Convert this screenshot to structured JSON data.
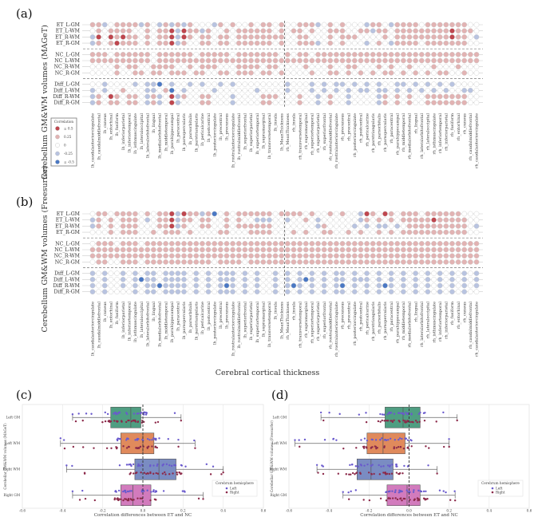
{
  "figure": {
    "panel_labels": [
      "(a)",
      "(b)",
      "(c)",
      "(d)"
    ],
    "heatmap_ylabel_a": "Cerebellum GM&WM volumes (MAGeT)",
    "heatmap_ylabel_b": "Cerebellum GM&WM volumes (Freesurfer)",
    "heatmap_xlabel": "Cerebral cortical thickness",
    "legend": {
      "title": "Correlation",
      "items": [
        "≥ 0.5",
        "0.25",
        "0",
        "-0.25",
        "≤ -0.5"
      ]
    },
    "colors": {
      "neg_strong": "#4a78c4",
      "neg": "#b8c3e0",
      "zero": "#ffffff",
      "pos": "#e2b3b3",
      "pos_strong": "#bf464e"
    }
  },
  "chart_data": [
    {
      "type": "heatmap",
      "panel": "(a)",
      "title": "MAGeT",
      "value_bins": [
        -0.5,
        -0.25,
        0,
        0.25,
        0.5
      ],
      "rows": [
        "ET_L-GM",
        "ET_L-WM",
        "ET_R-WM",
        "ET_R-GM",
        "NC_L-GM",
        "NC_L-WM",
        "NC_R-WM",
        "NC_R-GM",
        "Diff_L-GM",
        "Diff_L-WM",
        "Diff_R-WM",
        "Diff_R-GM"
      ],
      "columns": [
        "lh_caudalanteriorcingulate",
        "lh_caudalmiddlefrontal",
        "lh_cuneus",
        "lh_entorhinal",
        "lh_fusiform",
        "lh_inferiorparietal",
        "lh_inferiortemporal",
        "lh_isthmuscingulate",
        "lh_lateraloccipital",
        "lh_lateralorbitofrontal",
        "lh_lingual",
        "lh_medialorbitofrontal",
        "lh_middletemporal",
        "lh_parahippocampal",
        "lh_paracentral",
        "lh_parsopercularis",
        "lh_parsorbitalis",
        "lh_parstriangularis",
        "lh_pericalcarine",
        "lh_postcentral",
        "lh_posteriorcingulate",
        "lh_precentral",
        "lh_precuneus",
        "lh_rostralanteriorcingulate",
        "lh_rostralmiddlefrontal",
        "lh_superiorfrontal",
        "lh_superiorparietal",
        "lh_superiortemporal",
        "lh_supramarginal",
        "lh_transversetemporal",
        "lh_insula",
        "lh_MeanThickness",
        "rh_MeanThickness",
        "rh_insula",
        "rh_transversetemporal",
        "rh_supramarginal",
        "rh_superiortemporal",
        "rh_superiorparietal",
        "rh_superiorfrontal",
        "rh_rostralmiddlefrontal",
        "rh_rostralanteriorcingulate",
        "rh_precuneus",
        "rh_precentral",
        "rh_posteriorcingulate",
        "rh_postcentral",
        "rh_pericalcarine",
        "rh_parstriangularis",
        "rh_parsorbitalis",
        "rh_parsopercularis",
        "rh_paracentral",
        "rh_parahippocampal",
        "rh_middletemporal",
        "rh_medialorbitofrontal",
        "rh_lingual",
        "rh_lateralorbitofrontal",
        "rh_lateraloccipital",
        "rh_isthmuscingulate",
        "rh_inferiortemporal",
        "rh_inferiorparietal",
        "rh_fusiform",
        "rh_entorhinal",
        "rh_cuneus",
        "rh_caudalmiddlefrontal",
        "rh_caudalanteriorcingulate"
      ],
      "bins": [
        "3312333313213131322213232232332322333123232221332133332333333322",
        "2323333223233414331322323333332323323223332233133233333333343332",
        "1424343323233414323323323333333322332223233322223233333333343321",
        "1323433323233413223323323333332322333123232221232133332333333322",
        "3332333333233333323333323333333232332333333333333333333333333333",
        "3333333333233333333333333333333333333333333333333333333333333333",
        "2222323322333322323332223333233222232223223322232322322232223222",
        "2222322332332333233223323332332322223223323232323323232323322322",
        "2212222121102122121221212222222212221212112121212211212121212222",
        "1212232221123021222212222221222212221212121211211212121212122112",
        "1324323321312413223322212222333222322123221222213232322333333322",
        "1323323321312412223322212222332222322123221222213232322333333322"
      ]
    },
    {
      "type": "heatmap",
      "panel": "(b)",
      "title": "Freesurfer",
      "value_bins": [
        -0.5,
        -0.25,
        0,
        0.25,
        0.5
      ],
      "rows": [
        "ET_L-GM",
        "ET_L-WM",
        "ET_R-WM",
        "ET_R-GM",
        "NC_L-GM",
        "NC_L-WM",
        "NC_R-WM",
        "NC_R-GM",
        "Diff_L-GM",
        "Diff_L-WM",
        "Diff_R-WM",
        "Diff_R-GM"
      ],
      "bins": [
        "2332333323233414331302323333332333323223232214324323332333333222",
        "1323233321233413323322323221112212232122222213232323333343333322",
        "1323233322233413223322323333332222222132222121211212333333333321",
        "2223233322323332322223322233332223232233223232232323333333333322",
        "2333233323333333333333333333333333333333333333333333333333333333",
        "3333333333333333333333333333333333333333333333333333333333333333",
        "3333333333333333333333333333333333333333333333333333333333333333",
        "2332233323333333333323333233333333333333333333333333333333333333",
        "1212212121121111212121112121221212121212112121212121212121212121",
        "1212212101121111212121112121221212101212112111212121212121212121",
        "1212212121101111212121012121221210121212102121210121212121212121",
        "1212222121121111212121112121221212121212112121212121212121212122"
      ]
    },
    {
      "type": "box",
      "panel": "(c)",
      "ylabel": "Cerebellar GM&WM volumes (MAGeT)",
      "xlabel": "Correlation differences between ET and NC",
      "xlim": [
        -0.6,
        0.6
      ],
      "xticks": [
        "-0.6",
        "-0.4",
        "-0.2",
        "0.0",
        "0.2",
        "0.4",
        "0.6"
      ],
      "categories": [
        "Left GM",
        "Left WM",
        "Right WM",
        "Right GM"
      ],
      "box_colors": [
        "#4f9e82",
        "#e08a5c",
        "#7a8cc2",
        "#d27bbd"
      ],
      "stats": [
        {
          "min": -0.35,
          "q1": -0.16,
          "median": -0.06,
          "q3": -0.01,
          "max": 0.19
        },
        {
          "min": -0.41,
          "q1": -0.11,
          "median": 0.0,
          "q3": 0.055,
          "max": 0.26
        },
        {
          "min": -0.38,
          "q1": -0.04,
          "median": 0.08,
          "q3": 0.165,
          "max": 0.4
        },
        {
          "min": -0.35,
          "q1": -0.11,
          "median": -0.05,
          "q3": 0.04,
          "max": 0.3
        }
      ],
      "legend": {
        "title": "Cerebrum hemisphere",
        "items": [
          "Left",
          "Right"
        ],
        "colors": [
          "#6a5acd",
          "#8c2a4a"
        ],
        "placement": "lower-right"
      }
    },
    {
      "type": "box",
      "panel": "(d)",
      "ylabel": "Cerebellar GM&WM volumes (Freesurfer)",
      "xlabel": "Correlation differences between ET and NC",
      "xlim": [
        -0.6,
        0.6
      ],
      "xticks": [
        "-0.6",
        "-0.4",
        "-0.2",
        "0.0",
        "0.2",
        "0.4",
        "0.6"
      ],
      "categories": [
        "Left GM",
        "Left WM",
        "Right WM",
        "Right GM"
      ],
      "box_colors": [
        "#4f9e82",
        "#e08a5c",
        "#7a8cc2",
        "#d27bbd"
      ],
      "stats": [
        {
          "min": -0.44,
          "q1": -0.12,
          "median": -0.03,
          "q3": 0.055,
          "max": 0.24
        },
        {
          "min": -0.57,
          "q1": -0.21,
          "median": -0.13,
          "q3": -0.02,
          "max": 0.2
        },
        {
          "min": -0.46,
          "q1": -0.26,
          "median": -0.19,
          "q3": -0.08,
          "max": 0.14
        },
        {
          "min": -0.33,
          "q1": -0.11,
          "median": -0.01,
          "q3": 0.055,
          "max": 0.23
        }
      ],
      "legend": {
        "title": "Cerebrum hemisphere",
        "items": [
          "Left",
          "Right"
        ],
        "colors": [
          "#6a5acd",
          "#8c2a4a"
        ],
        "placement": "lower-right"
      }
    }
  ]
}
